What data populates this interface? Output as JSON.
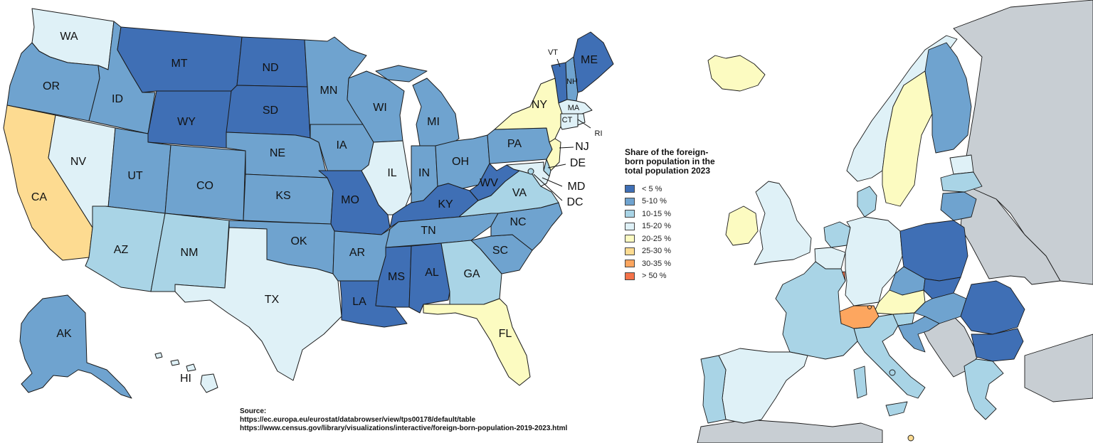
{
  "legend": {
    "title": "Share of the foreign-born population in the total population 2023",
    "items": [
      {
        "label": "< 5 %",
        "color": "#3f6fb5"
      },
      {
        "label": "5-10 %",
        "color": "#6fa3cf"
      },
      {
        "label": "10-15 %",
        "color": "#a9d4e6"
      },
      {
        "label": "15-20 %",
        "color": "#dff1f7"
      },
      {
        "label": "20-25 %",
        "color": "#fcfbc1"
      },
      {
        "label": "25-30 %",
        "color": "#fddb91"
      },
      {
        "label": "30-35 %",
        "color": "#fda65f"
      },
      {
        "label": "> 50 %",
        "color": "#f4734a"
      }
    ]
  },
  "nodata_color": "#c8ced3",
  "source": {
    "heading": "Source:",
    "links": [
      "https://ec.europa.eu/eurostat/databrowser/view/tps00178/default/table",
      "https://www.census.gov/library/visualizations/interactive/foreign-born-population-2019-2023.html"
    ]
  },
  "us_states": [
    {
      "code": "WA",
      "bin": 3
    },
    {
      "code": "OR",
      "bin": 1
    },
    {
      "code": "CA",
      "bin": 5
    },
    {
      "code": "NV",
      "bin": 3
    },
    {
      "code": "ID",
      "bin": 1
    },
    {
      "code": "MT",
      "bin": 0
    },
    {
      "code": "WY",
      "bin": 0
    },
    {
      "code": "UT",
      "bin": 1
    },
    {
      "code": "AZ",
      "bin": 2
    },
    {
      "code": "CO",
      "bin": 1
    },
    {
      "code": "NM",
      "bin": 2
    },
    {
      "code": "ND",
      "bin": 0
    },
    {
      "code": "SD",
      "bin": 0
    },
    {
      "code": "NE",
      "bin": 1
    },
    {
      "code": "KS",
      "bin": 1
    },
    {
      "code": "OK",
      "bin": 1
    },
    {
      "code": "TX",
      "bin": 3
    },
    {
      "code": "MN",
      "bin": 1
    },
    {
      "code": "IA",
      "bin": 1
    },
    {
      "code": "MO",
      "bin": 0
    },
    {
      "code": "AR",
      "bin": 1
    },
    {
      "code": "LA",
      "bin": 0
    },
    {
      "code": "WI",
      "bin": 1
    },
    {
      "code": "IL",
      "bin": 3
    },
    {
      "code": "MI",
      "bin": 1
    },
    {
      "code": "IN",
      "bin": 1
    },
    {
      "code": "OH",
      "bin": 1
    },
    {
      "code": "KY",
      "bin": 0
    },
    {
      "code": "TN",
      "bin": 1
    },
    {
      "code": "MS",
      "bin": 0
    },
    {
      "code": "AL",
      "bin": 0
    },
    {
      "code": "GA",
      "bin": 2
    },
    {
      "code": "FL",
      "bin": 4
    },
    {
      "code": "SC",
      "bin": 1
    },
    {
      "code": "NC",
      "bin": 1
    },
    {
      "code": "VA",
      "bin": 2
    },
    {
      "code": "WV",
      "bin": 0
    },
    {
      "code": "PA",
      "bin": 1
    },
    {
      "code": "NY",
      "bin": 4
    },
    {
      "code": "VT",
      "bin": 0
    },
    {
      "code": "NH",
      "bin": 1
    },
    {
      "code": "ME",
      "bin": 0
    },
    {
      "code": "MA",
      "bin": 3
    },
    {
      "code": "CT",
      "bin": 3
    },
    {
      "code": "RI",
      "bin": 3
    },
    {
      "code": "NJ",
      "bin": 4
    },
    {
      "code": "DE",
      "bin": 2
    },
    {
      "code": "MD",
      "bin": 3
    },
    {
      "code": "DC",
      "bin": 2
    },
    {
      "code": "AK",
      "bin": 1
    },
    {
      "code": "HI",
      "bin": 3
    }
  ],
  "eu_countries": [
    {
      "name": "Iceland",
      "bin": 4
    },
    {
      "name": "Ireland",
      "bin": 4
    },
    {
      "name": "Norway",
      "bin": 3
    },
    {
      "name": "Sweden",
      "bin": 4
    },
    {
      "name": "Finland",
      "bin": 1
    },
    {
      "name": "Estonia",
      "bin": 3
    },
    {
      "name": "Latvia",
      "bin": 2
    },
    {
      "name": "Lithuania",
      "bin": 1
    },
    {
      "name": "Denmark",
      "bin": 2
    },
    {
      "name": "Netherlands",
      "bin": 2
    },
    {
      "name": "Belgium",
      "bin": 3
    },
    {
      "name": "Luxembourg",
      "bin": 7
    },
    {
      "name": "Germany",
      "bin": 3
    },
    {
      "name": "Poland",
      "bin": 0
    },
    {
      "name": "Czechia",
      "bin": 1
    },
    {
      "name": "Slovakia",
      "bin": 0
    },
    {
      "name": "Austria",
      "bin": 4
    },
    {
      "name": "Switzerland",
      "bin": 6
    },
    {
      "name": "Liechtenstein",
      "bin": 6
    },
    {
      "name": "Hungary",
      "bin": 1
    },
    {
      "name": "Slovenia",
      "bin": 2
    },
    {
      "name": "Croatia",
      "bin": 1
    },
    {
      "name": "Romania",
      "bin": 0
    },
    {
      "name": "Bulgaria",
      "bin": 0
    },
    {
      "name": "Greece",
      "bin": 2
    },
    {
      "name": "Italy",
      "bin": 2
    },
    {
      "name": "France",
      "bin": 2
    },
    {
      "name": "Spain",
      "bin": 3
    },
    {
      "name": "Portugal",
      "bin": 2
    },
    {
      "name": "Malta",
      "bin": 2
    },
    {
      "name": "Cyprus",
      "bin": 5
    }
  ]
}
